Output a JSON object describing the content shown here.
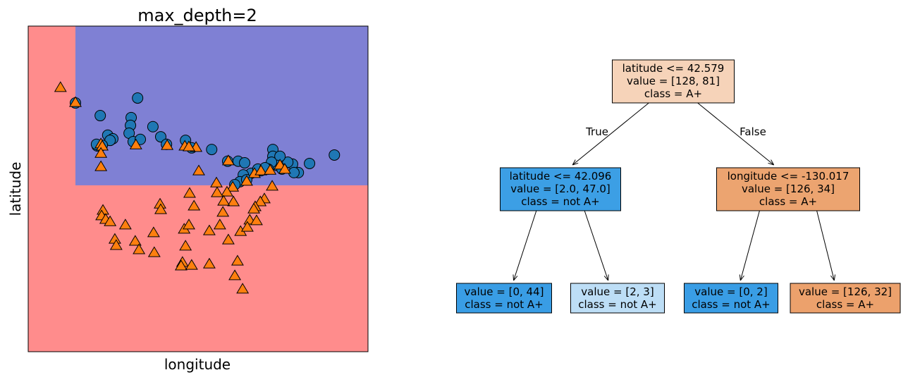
{
  "chart_data": [
    {
      "type": "scatter",
      "title": "max_depth=2",
      "xlabel": "longitude",
      "ylabel": "latitude",
      "xlim": [
        0,
        100
      ],
      "ylim": [
        0,
        100
      ],
      "ticks": false,
      "grid": false,
      "decision_regions": {
        "x_split": 13.9,
        "y_split": 51.1,
        "upper_right_color": "#7f80d4",
        "other_color": "#ff8c8c"
      },
      "series": [
        {
          "marker": "circle",
          "color": "#1f77b4",
          "points": [
            [
              13.9,
              76.4
            ],
            [
              21.2,
              72.5
            ],
            [
              32.2,
              77.9
            ],
            [
              30.3,
              71.9
            ],
            [
              30.1,
              69.5
            ],
            [
              29.7,
              67.1
            ],
            [
              30.9,
              64.5
            ],
            [
              33.0,
              65.2
            ],
            [
              23.4,
              66.5
            ],
            [
              24.9,
              65.4
            ],
            [
              24.1,
              64.9
            ],
            [
              20.3,
              63.2
            ],
            [
              21.8,
              63.4
            ],
            [
              20.1,
              63.7
            ],
            [
              36.7,
              69.1
            ],
            [
              39.0,
              66.0
            ],
            [
              46.3,
              64.9
            ],
            [
              40.7,
              63.7
            ],
            [
              48.1,
              62.6
            ],
            [
              54.0,
              62.1
            ],
            [
              58.7,
              58.5
            ],
            [
              61.8,
              58.5
            ],
            [
              63.7,
              58.0
            ],
            [
              72.0,
              62.1
            ],
            [
              72.0,
              60.0
            ],
            [
              90.1,
              60.4
            ],
            [
              82.8,
              57.8
            ],
            [
              79.5,
              55.0
            ],
            [
              77.8,
              57.6
            ],
            [
              76.4,
              58.2
            ],
            [
              74.1,
              60.0
            ],
            [
              73.2,
              57.2
            ],
            [
              71.6,
              58.2
            ],
            [
              70.6,
              56.1
            ],
            [
              68.5,
              55.6
            ],
            [
              67.0,
              55.2
            ],
            [
              65.6,
              54.8
            ],
            [
              63.3,
              54.3
            ],
            [
              62.3,
              52.2
            ],
            [
              60.8,
              51.3
            ],
            [
              64.3,
              52.8
            ],
            [
              67.6,
              56.1
            ],
            [
              69.7,
              56.5
            ],
            [
              74.7,
              56.1
            ],
            [
              78.2,
              55.0
            ]
          ]
        },
        {
          "marker": "triangle",
          "color": "#ff7f0e",
          "points": [
            [
              9.5,
              81.0
            ],
            [
              13.9,
              76.4
            ],
            [
              21.4,
              63.7
            ],
            [
              21.8,
              63.0
            ],
            [
              21.4,
              60.8
            ],
            [
              21.4,
              56.7
            ],
            [
              31.7,
              63.4
            ],
            [
              40.9,
              63.2
            ],
            [
              46.1,
              63.0
            ],
            [
              49.4,
              62.6
            ],
            [
              47.3,
              62.8
            ],
            [
              50.2,
              55.4
            ],
            [
              58.9,
              58.5
            ],
            [
              55.4,
              51.7
            ],
            [
              64.3,
              52.2
            ],
            [
              60.2,
              50.4
            ],
            [
              58.5,
              48.9
            ],
            [
              66.6,
              54.6
            ],
            [
              68.5,
              55.4
            ],
            [
              71.2,
              55.6
            ],
            [
              74.1,
              57.2
            ],
            [
              75.5,
              55.9
            ],
            [
              71.8,
              50.7
            ],
            [
              69.5,
              46.8
            ],
            [
              68.3,
              45.9
            ],
            [
              66.8,
              44.4
            ],
            [
              66.4,
              43.7
            ],
            [
              65.2,
              40.3
            ],
            [
              60.4,
              45.9
            ],
            [
              57.5,
              46.1
            ],
            [
              57.3,
              42.7
            ],
            [
              55.6,
              48.7
            ],
            [
              47.5,
              48.5
            ],
            [
              48.8,
              44.6
            ],
            [
              38.8,
              45.2
            ],
            [
              39.0,
              43.5
            ],
            [
              22.0,
              43.3
            ],
            [
              21.6,
              41.6
            ],
            [
              22.8,
              40.5
            ],
            [
              24.1,
              39.8
            ],
            [
              28.6,
              38.8
            ],
            [
              25.5,
              34.4
            ],
            [
              25.9,
              32.5
            ],
            [
              31.5,
              33.8
            ],
            [
              32.6,
              31.2
            ],
            [
              36.9,
              36.4
            ],
            [
              37.1,
              30.3
            ],
            [
              45.9,
              37.5
            ],
            [
              47.3,
              38.8
            ],
            [
              46.3,
              32.3
            ],
            [
              53.3,
              37.0
            ],
            [
              56.4,
              38.8
            ],
            [
              62.5,
              36.8
            ],
            [
              64.5,
              38.1
            ],
            [
              67.2,
              40.1
            ],
            [
              58.9,
              34.2
            ],
            [
              61.6,
              27.7
            ],
            [
              60.8,
              23.2
            ],
            [
              63.1,
              19.1
            ],
            [
              53.3,
              26.8
            ],
            [
              45.4,
              27.3
            ],
            [
              45.0,
              26.2
            ],
            [
              48.1,
              26.4
            ]
          ]
        }
      ]
    }
  ],
  "tree": {
    "nodes": [
      {
        "lines": [
          "latitude <= 42.579",
          "value = [128, 81]",
          "class = A+"
        ],
        "color": "#f6d3b9"
      },
      {
        "lines": [
          "latitude <= 42.096",
          "value = [2.0, 47.0]",
          "class = not A+"
        ],
        "color": "#3c9fe5"
      },
      {
        "lines": [
          "longitude <= -130.017",
          "value = [126, 34]",
          "class = A+"
        ],
        "color": "#eca470"
      },
      {
        "lines": [
          "value = [0, 44]",
          "class = not A+"
        ],
        "color": "#399de5"
      },
      {
        "lines": [
          "value = [2, 3]",
          "class = not A+"
        ],
        "color": "#bddef6"
      },
      {
        "lines": [
          "value = [0, 2]",
          "class = not A+"
        ],
        "color": "#399de5"
      },
      {
        "lines": [
          "value = [126, 32]",
          "class = A+"
        ],
        "color": "#eca16c"
      }
    ],
    "edge_labels": {
      "true": "True",
      "false": "False"
    }
  }
}
